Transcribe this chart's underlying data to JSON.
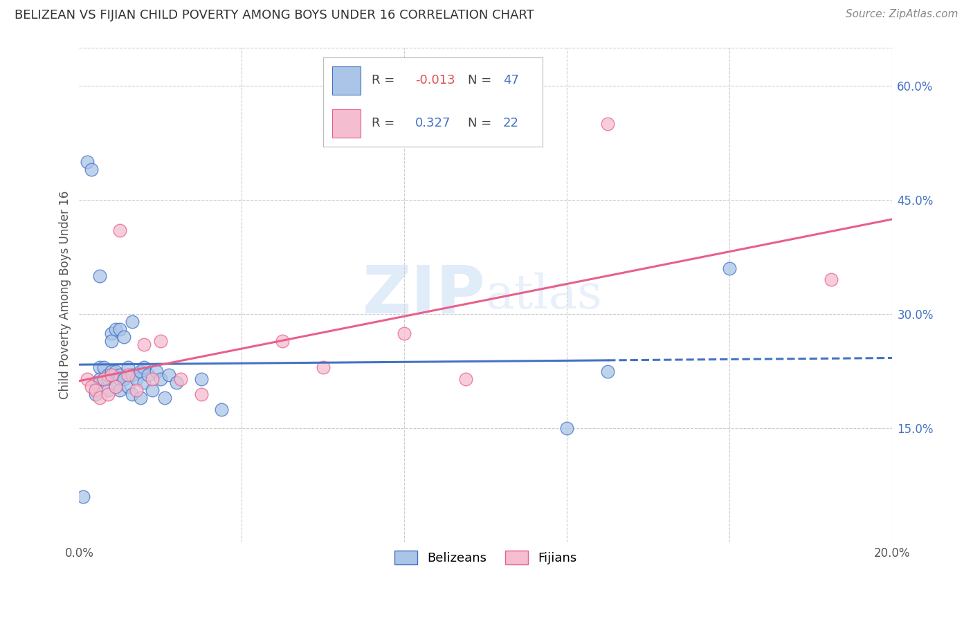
{
  "title": "BELIZEAN VS FIJIAN CHILD POVERTY AMONG BOYS UNDER 16 CORRELATION CHART",
  "source": "Source: ZipAtlas.com",
  "ylabel": "Child Poverty Among Boys Under 16",
  "xlim": [
    0.0,
    0.2
  ],
  "ylim": [
    0.0,
    0.65
  ],
  "belizean_R": "-0.013",
  "belizean_N": "47",
  "fijian_R": "0.327",
  "fijian_N": "22",
  "belizean_color": "#aac5e8",
  "fijian_color": "#f5bdd0",
  "belizean_line_color": "#4472C4",
  "fijian_line_color": "#e8608a",
  "watermark_color": "#c5daf5",
  "belizean_points_x": [
    0.001,
    0.002,
    0.003,
    0.004,
    0.004,
    0.005,
    0.005,
    0.005,
    0.006,
    0.006,
    0.007,
    0.007,
    0.007,
    0.008,
    0.008,
    0.008,
    0.009,
    0.009,
    0.009,
    0.01,
    0.01,
    0.01,
    0.01,
    0.011,
    0.011,
    0.012,
    0.012,
    0.013,
    0.013,
    0.013,
    0.014,
    0.015,
    0.015,
    0.016,
    0.016,
    0.017,
    0.018,
    0.019,
    0.02,
    0.021,
    0.022,
    0.024,
    0.03,
    0.035,
    0.12,
    0.13,
    0.16
  ],
  "belizean_points_y": [
    0.06,
    0.5,
    0.49,
    0.21,
    0.195,
    0.23,
    0.215,
    0.35,
    0.23,
    0.215,
    0.215,
    0.22,
    0.2,
    0.275,
    0.265,
    0.225,
    0.28,
    0.225,
    0.205,
    0.28,
    0.22,
    0.215,
    0.2,
    0.27,
    0.215,
    0.23,
    0.205,
    0.29,
    0.22,
    0.195,
    0.215,
    0.225,
    0.19,
    0.23,
    0.21,
    0.22,
    0.2,
    0.225,
    0.215,
    0.19,
    0.22,
    0.21,
    0.215,
    0.175,
    0.15,
    0.225,
    0.36
  ],
  "fijian_points_x": [
    0.002,
    0.003,
    0.004,
    0.005,
    0.006,
    0.007,
    0.008,
    0.009,
    0.01,
    0.012,
    0.014,
    0.016,
    0.018,
    0.02,
    0.025,
    0.03,
    0.05,
    0.06,
    0.08,
    0.095,
    0.13,
    0.185
  ],
  "fijian_points_y": [
    0.215,
    0.205,
    0.2,
    0.19,
    0.215,
    0.195,
    0.22,
    0.205,
    0.41,
    0.22,
    0.2,
    0.26,
    0.215,
    0.265,
    0.215,
    0.195,
    0.265,
    0.23,
    0.275,
    0.215,
    0.55,
    0.345
  ],
  "belizean_line_x_solid_end": 0.13,
  "belizean_line_intercept": 0.228,
  "belizean_line_slope": -0.08,
  "fijian_line_intercept": 0.165,
  "fijian_line_slope": 0.96
}
